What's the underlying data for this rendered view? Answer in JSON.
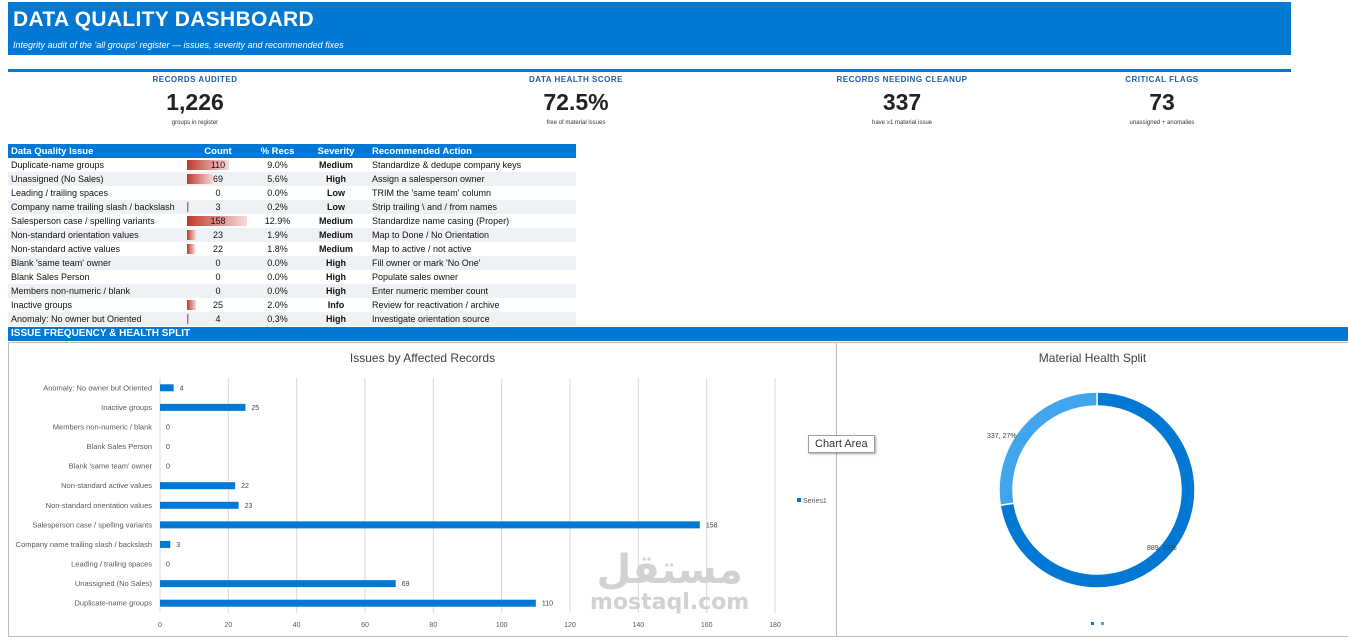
{
  "header": {
    "title": "DATA QUALITY DASHBOARD",
    "subtitle": "Integrity audit of the 'all groups' register — issues, severity and recommended fixes"
  },
  "kpis": [
    {
      "label": "RECORDS AUDITED",
      "value": "1,226",
      "sub": "groups in register"
    },
    {
      "label": "DATA HEALTH SCORE",
      "value": "72.5%",
      "sub": "free of material issues"
    },
    {
      "label": "RECORDS NEEDING CLEANUP",
      "value": "337",
      "sub": "have ≥1 material issue"
    },
    {
      "label": "CRITICAL FLAGS",
      "value": "73",
      "sub": "unassigned + anomalies"
    }
  ],
  "issues_table": {
    "headers": [
      "Data Quality Issue",
      "Count",
      "% Recs",
      "Severity",
      "Recommended Action"
    ],
    "max_count": 158,
    "rows": [
      {
        "issue": "Duplicate-name groups",
        "count": 110,
        "pct": "9.0%",
        "severity": "Medium",
        "action": "Standardize & dedupe company keys"
      },
      {
        "issue": "Unassigned (No Sales)",
        "count": 69,
        "pct": "5.6%",
        "severity": "High",
        "action": "Assign a salesperson owner"
      },
      {
        "issue": "Leading / trailing spaces",
        "count": 0,
        "pct": "0.0%",
        "severity": "Low",
        "action": "TRIM the 'same team' column"
      },
      {
        "issue": "Company name trailing slash / backslash",
        "count": 3,
        "pct": "0.2%",
        "severity": "Low",
        "action": "Strip trailing \\ and / from names"
      },
      {
        "issue": "Salesperson case / spelling variants",
        "count": 158,
        "pct": "12.9%",
        "severity": "Medium",
        "action": "Standardize name casing (Proper)"
      },
      {
        "issue": "Non-standard orientation values",
        "count": 23,
        "pct": "1.9%",
        "severity": "Medium",
        "action": "Map to Done / No Orientation"
      },
      {
        "issue": "Non-standard active values",
        "count": 22,
        "pct": "1.8%",
        "severity": "Medium",
        "action": "Map to active / not active"
      },
      {
        "issue": "Blank 'same team' owner",
        "count": 0,
        "pct": "0.0%",
        "severity": "High",
        "action": "Fill owner or mark 'No One'"
      },
      {
        "issue": "Blank Sales Person",
        "count": 0,
        "pct": "0.0%",
        "severity": "High",
        "action": "Populate sales owner"
      },
      {
        "issue": "Members non-numeric / blank",
        "count": 0,
        "pct": "0.0%",
        "severity": "High",
        "action": "Enter numeric member count"
      },
      {
        "issue": "Inactive groups",
        "count": 25,
        "pct": "2.0%",
        "severity": "Info",
        "action": "Review for reactivation / archive"
      },
      {
        "issue": "Anomaly: No owner but Oriented",
        "count": 4,
        "pct": "0.3%",
        "severity": "High",
        "action": "Investigate orientation source"
      }
    ]
  },
  "section_title": "ISSUE FREQUENCY & HEALTH SPLIT",
  "tooltip": "Chart Area",
  "watermark": {
    "arabic": "مستقل",
    "latin": "mostaql.com"
  },
  "chart_data": [
    {
      "type": "bar",
      "orientation": "horizontal",
      "title": "Issues by Affected Records",
      "categories": [
        "Duplicate-name groups",
        "Unassigned (No Sales)",
        "Leading / trailing spaces",
        "Company name trailing slash / backslash",
        "Salesperson case / spelling variants",
        "Non-standard orientation values",
        "Non-standard active values",
        "Blank 'same team' owner",
        "Blank Sales Person",
        "Members non-numeric / blank",
        "Inactive groups",
        "Anomaly: No owner but Oriented"
      ],
      "series": [
        {
          "name": "Series1",
          "values": [
            110,
            69,
            0,
            3,
            158,
            23,
            22,
            0,
            0,
            0,
            25,
            4
          ]
        }
      ],
      "xlim": [
        0,
        180
      ],
      "xticks": [
        0,
        20,
        40,
        60,
        80,
        100,
        120,
        140,
        160,
        180
      ],
      "grid": true,
      "legend": "right",
      "color": "#0078d4"
    },
    {
      "type": "pie",
      "donut": true,
      "title": "Material Health Split",
      "slices": [
        {
          "label": "337, 27%",
          "value": 337,
          "color": "#41a5ee"
        },
        {
          "label": "889, 73%",
          "value": 889,
          "color": "#0078d4"
        }
      ],
      "legend": "bottom"
    }
  ]
}
